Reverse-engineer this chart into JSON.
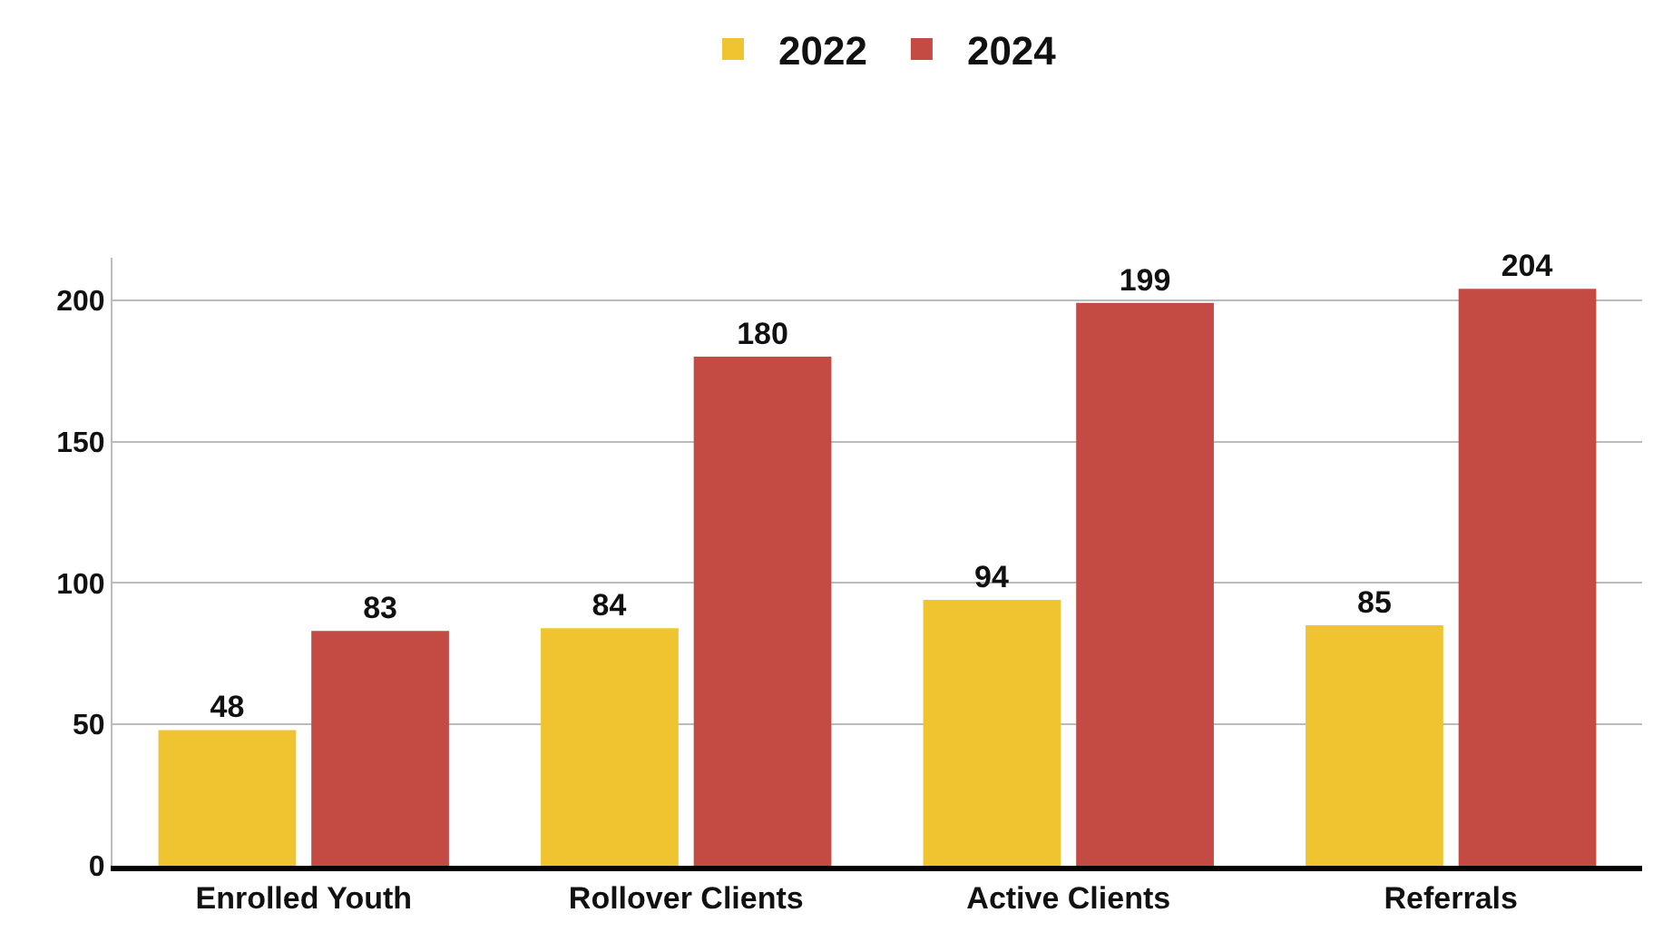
{
  "chart_data": {
    "type": "bar",
    "categories": [
      "Enrolled Youth",
      "Rollover Clients",
      "Active Clients",
      "Referrals"
    ],
    "series": [
      {
        "name": "2022",
        "color": "#f0c330",
        "values": [
          48,
          84,
          94,
          85
        ]
      },
      {
        "name": "2024",
        "color": "#c44a44",
        "values": [
          83,
          180,
          199,
          204
        ]
      }
    ],
    "ylim": [
      0,
      215
    ],
    "yticks": [
      0,
      50,
      100,
      150,
      200
    ],
    "grid": "y",
    "legend": "top",
    "data_labels": true
  }
}
